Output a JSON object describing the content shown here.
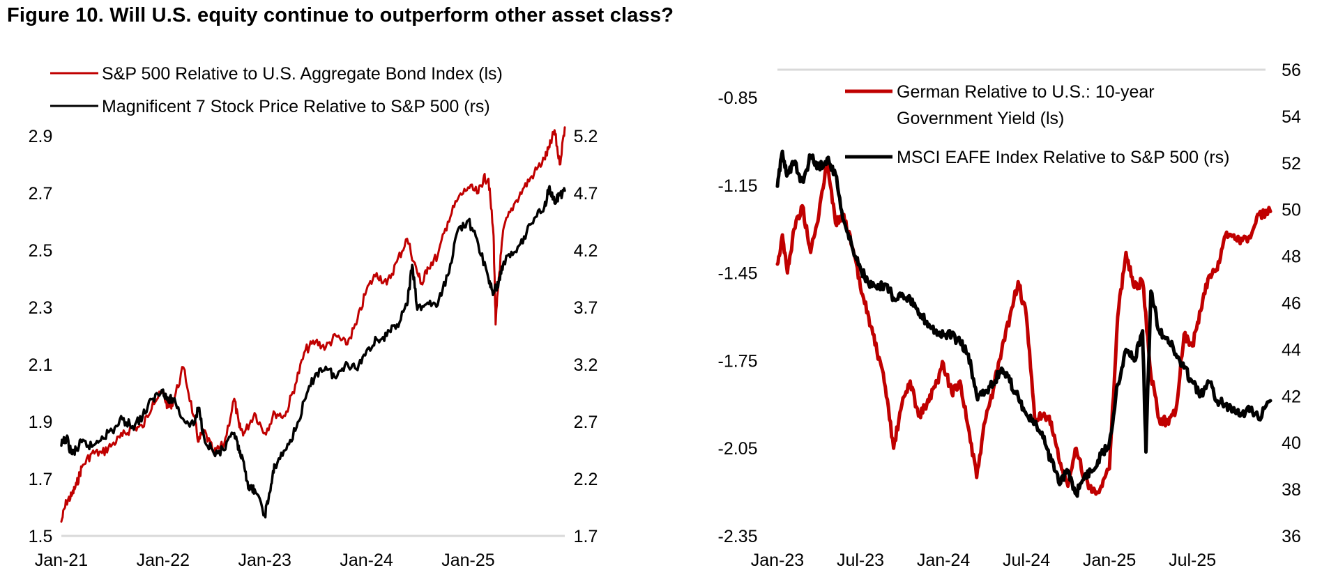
{
  "figure_title": "Figure 10. Will U.S. equity continue to outperform other asset class?",
  "colors": {
    "red": "#c00000",
    "black": "#000000",
    "grid": "#d9d9d9"
  },
  "chart_data": [
    {
      "type": "line",
      "title": "",
      "legend_placement": "top-left",
      "x_tick_labels": [
        "Jan-21",
        "Jan-22",
        "Jan-23",
        "Jan-24",
        "Jan-25"
      ],
      "x_range": [
        2021.0,
        2025.95
      ],
      "y_left": {
        "range": [
          1.5,
          2.9
        ],
        "ticks": [
          "1.5",
          "1.7",
          "1.9",
          "2.1",
          "2.3",
          "2.5",
          "2.7",
          "2.9"
        ]
      },
      "y_right": {
        "range": [
          1.7,
          5.2
        ],
        "ticks": [
          "1.7",
          "2.2",
          "2.7",
          "3.2",
          "3.7",
          "4.2",
          "4.7",
          "5.2"
        ]
      },
      "series": [
        {
          "name": "S&P 500 Relative to U.S. Aggregate Bond Index (ls)",
          "axis": "left",
          "color": "red",
          "x": [
            2021.0,
            2021.05,
            2021.1,
            2021.15,
            2021.2,
            2021.3,
            2021.4,
            2021.5,
            2021.6,
            2021.7,
            2021.8,
            2021.9,
            2022.0,
            2022.05,
            2022.1,
            2022.2,
            2022.3,
            2022.35,
            2022.4,
            2022.5,
            2022.6,
            2022.7,
            2022.75,
            2022.8,
            2022.9,
            2023.0,
            2023.1,
            2023.2,
            2023.3,
            2023.4,
            2023.5,
            2023.6,
            2023.7,
            2023.8,
            2023.9,
            2024.0,
            2024.1,
            2024.2,
            2024.3,
            2024.4,
            2024.5,
            2024.55,
            2024.6,
            2024.7,
            2024.8,
            2024.9,
            2025.0,
            2025.1,
            2025.15,
            2025.2,
            2025.25,
            2025.27,
            2025.3,
            2025.35,
            2025.45,
            2025.55,
            2025.65,
            2025.75,
            2025.8,
            2025.85,
            2025.9,
            2025.95
          ],
          "y": [
            1.55,
            1.62,
            1.64,
            1.68,
            1.74,
            1.79,
            1.79,
            1.82,
            1.85,
            1.88,
            1.88,
            1.97,
            2.0,
            1.95,
            1.97,
            2.09,
            1.92,
            1.83,
            1.87,
            1.79,
            1.82,
            1.98,
            1.88,
            1.86,
            1.93,
            1.86,
            1.93,
            1.92,
            2.03,
            2.15,
            2.18,
            2.16,
            2.2,
            2.17,
            2.24,
            2.36,
            2.42,
            2.38,
            2.46,
            2.54,
            2.42,
            2.38,
            2.44,
            2.48,
            2.6,
            2.68,
            2.72,
            2.7,
            2.75,
            2.75,
            2.55,
            2.24,
            2.4,
            2.58,
            2.66,
            2.72,
            2.77,
            2.82,
            2.86,
            2.92,
            2.8,
            2.93
          ]
        },
        {
          "name": "Magnificent 7 Stock Price Relative to S&P 500 (rs)",
          "axis": "right",
          "color": "black",
          "x": [
            2021.0,
            2021.05,
            2021.1,
            2021.15,
            2021.2,
            2021.3,
            2021.4,
            2021.5,
            2021.6,
            2021.7,
            2021.8,
            2021.9,
            2022.0,
            2022.05,
            2022.1,
            2022.2,
            2022.3,
            2022.35,
            2022.4,
            2022.5,
            2022.6,
            2022.7,
            2022.75,
            2022.8,
            2022.85,
            2022.9,
            2023.0,
            2023.05,
            2023.1,
            2023.2,
            2023.3,
            2023.4,
            2023.5,
            2023.6,
            2023.7,
            2023.8,
            2023.9,
            2024.0,
            2024.1,
            2024.2,
            2024.3,
            2024.4,
            2024.45,
            2024.5,
            2024.6,
            2024.7,
            2024.8,
            2024.9,
            2025.0,
            2025.1,
            2025.2,
            2025.25,
            2025.3,
            2025.35,
            2025.45,
            2025.55,
            2025.65,
            2025.75,
            2025.8,
            2025.85,
            2025.9,
            2025.95
          ],
          "y": [
            2.49,
            2.56,
            2.42,
            2.45,
            2.52,
            2.48,
            2.57,
            2.62,
            2.72,
            2.66,
            2.75,
            2.9,
            2.98,
            2.88,
            2.9,
            2.72,
            2.67,
            2.82,
            2.58,
            2.42,
            2.45,
            2.6,
            2.43,
            2.3,
            2.1,
            2.11,
            1.88,
            2.08,
            2.32,
            2.45,
            2.62,
            2.9,
            3.12,
            3.18,
            3.08,
            3.22,
            3.16,
            3.32,
            3.42,
            3.45,
            3.55,
            3.72,
            4.07,
            3.68,
            3.74,
            3.72,
            3.98,
            4.38,
            4.46,
            4.25,
            3.95,
            3.82,
            3.92,
            4.1,
            4.18,
            4.32,
            4.48,
            4.58,
            4.76,
            4.61,
            4.68,
            4.72
          ]
        }
      ]
    },
    {
      "type": "line",
      "title": "",
      "legend_placement": "top-right",
      "x_tick_labels": [
        "Jan-23",
        "Jul-23",
        "Jan-24",
        "Jul-24",
        "Jan-25",
        "Jul-25"
      ],
      "x_range": [
        2023.0,
        2025.97
      ],
      "y_left": {
        "range": [
          -2.35,
          -0.85
        ],
        "ticks": [
          "-0.85",
          "-1.15",
          "-1.45",
          "-1.75",
          "-2.05",
          "-2.35"
        ]
      },
      "y_right": {
        "range": [
          36,
          56
        ],
        "ticks": [
          "56",
          "54",
          "52",
          "50",
          "48",
          "46",
          "44",
          "42",
          "40",
          "38",
          "36"
        ]
      },
      "series": [
        {
          "name": "German Relative to U.S.: 10-year Government Yield (ls)",
          "axis": "left",
          "color": "red",
          "x": [
            2023.0,
            2023.03,
            2023.06,
            2023.1,
            2023.15,
            2023.2,
            2023.25,
            2023.3,
            2023.35,
            2023.4,
            2023.45,
            2023.5,
            2023.55,
            2023.6,
            2023.65,
            2023.7,
            2023.75,
            2023.8,
            2023.85,
            2023.9,
            2023.95,
            2024.0,
            2024.05,
            2024.1,
            2024.15,
            2024.2,
            2024.25,
            2024.3,
            2024.35,
            2024.4,
            2024.45,
            2024.5,
            2024.55,
            2024.6,
            2024.65,
            2024.7,
            2024.75,
            2024.8,
            2024.85,
            2024.9,
            2024.95,
            2025.0,
            2025.05,
            2025.1,
            2025.15,
            2025.2,
            2025.25,
            2025.3,
            2025.35,
            2025.4,
            2025.45,
            2025.5,
            2025.55,
            2025.6,
            2025.65,
            2025.7,
            2025.75,
            2025.8,
            2025.85,
            2025.9,
            2025.97
          ],
          "y": [
            -1.42,
            -1.32,
            -1.45,
            -1.3,
            -1.22,
            -1.38,
            -1.25,
            -1.06,
            -1.28,
            -1.25,
            -1.36,
            -1.5,
            -1.6,
            -1.72,
            -1.84,
            -2.05,
            -1.9,
            -1.82,
            -1.94,
            -1.9,
            -1.84,
            -1.76,
            -1.86,
            -1.82,
            -1.98,
            -2.15,
            -1.96,
            -1.85,
            -1.72,
            -1.6,
            -1.48,
            -1.6,
            -1.95,
            -1.94,
            -1.96,
            -2.1,
            -2.18,
            -2.05,
            -2.15,
            -2.2,
            -2.18,
            -2.12,
            -1.6,
            -1.38,
            -1.5,
            -1.48,
            -1.8,
            -1.95,
            -1.96,
            -1.92,
            -1.66,
            -1.7,
            -1.58,
            -1.46,
            -1.44,
            -1.32,
            -1.32,
            -1.34,
            -1.33,
            -1.25,
            -1.24
          ]
        },
        {
          "name": "MSCI EAFE Index Relative to S&P 500 (rs)",
          "axis": "right",
          "color": "black",
          "x": [
            2023.0,
            2023.03,
            2023.06,
            2023.1,
            2023.15,
            2023.2,
            2023.25,
            2023.3,
            2023.35,
            2023.4,
            2023.45,
            2023.5,
            2023.55,
            2023.6,
            2023.65,
            2023.7,
            2023.75,
            2023.8,
            2023.85,
            2023.9,
            2023.95,
            2024.0,
            2024.05,
            2024.1,
            2024.15,
            2024.2,
            2024.25,
            2024.3,
            2024.35,
            2024.4,
            2024.45,
            2024.5,
            2024.55,
            2024.6,
            2024.65,
            2024.7,
            2024.75,
            2024.8,
            2024.85,
            2024.9,
            2024.95,
            2025.0,
            2025.05,
            2025.1,
            2025.15,
            2025.2,
            2025.22,
            2025.25,
            2025.3,
            2025.35,
            2025.4,
            2025.45,
            2025.5,
            2025.55,
            2025.6,
            2025.65,
            2025.7,
            2025.75,
            2025.8,
            2025.85,
            2025.9,
            2025.97
          ],
          "y": [
            51.0,
            52.5,
            51.5,
            52.0,
            51.2,
            52.3,
            51.8,
            52.2,
            51.5,
            49.5,
            48.4,
            47.5,
            46.8,
            46.6,
            46.8,
            46.2,
            46.4,
            46.2,
            45.5,
            45.2,
            44.8,
            44.6,
            44.6,
            44.3,
            43.8,
            42.0,
            42.2,
            42.5,
            43.2,
            42.6,
            42.0,
            41.2,
            40.8,
            40.2,
            39.2,
            38.2,
            38.8,
            37.8,
            38.6,
            38.8,
            39.5,
            40.0,
            42.5,
            44.0,
            43.5,
            44.8,
            39.6,
            46.5,
            44.8,
            44.5,
            43.8,
            43.2,
            42.6,
            42.0,
            42.6,
            41.8,
            41.6,
            41.5,
            41.2,
            41.5,
            41.0,
            41.8
          ]
        }
      ]
    }
  ]
}
